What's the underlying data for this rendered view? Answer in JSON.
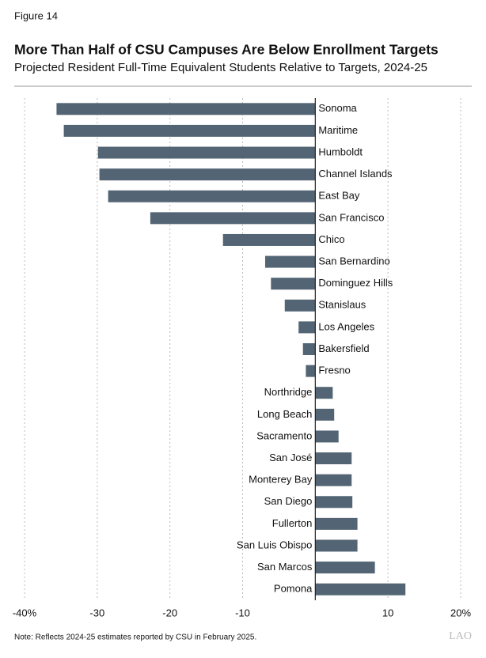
{
  "figure_label": "Figure 14",
  "note": "Note: Reflects 2024-25 estimates reported by CSU in February 2025.",
  "logo": "LAO",
  "chart_data": {
    "type": "bar",
    "orientation": "horizontal",
    "title": "More Than Half of CSU Campuses Are Below Enrollment Targets",
    "subtitle": "Projected Resident Full-Time Equivalent Students Relative to Targets, 2024-25",
    "categories": [
      "Sonoma",
      "Maritime",
      "Humboldt",
      "Channel Islands",
      "East Bay",
      "San Francisco",
      "Chico",
      "San Bernardino",
      "Dominguez Hills",
      "Stanislaus",
      "Los Angeles",
      "Bakersfield",
      "Fresno",
      "Northridge",
      "Long Beach",
      "Sacramento",
      "San José",
      "Monterey Bay",
      "San Diego",
      "Fullerton",
      "San Luis Obispo",
      "San Marcos",
      "Pomona"
    ],
    "values": [
      -35.6,
      -34.6,
      -29.9,
      -29.7,
      -28.5,
      -22.7,
      -12.7,
      -6.9,
      -6.1,
      -4.2,
      -2.3,
      -1.7,
      -1.3,
      2.4,
      2.6,
      3.2,
      5.0,
      5.0,
      5.1,
      5.8,
      5.8,
      8.2,
      12.4
    ],
    "color": "#536574",
    "xlim": [
      -40,
      20
    ],
    "xticks": [
      {
        "value": -40,
        "label": "-40%"
      },
      -30,
      -20,
      -10,
      10,
      {
        "value": 20,
        "label": "20%"
      }
    ],
    "grid": true
  }
}
